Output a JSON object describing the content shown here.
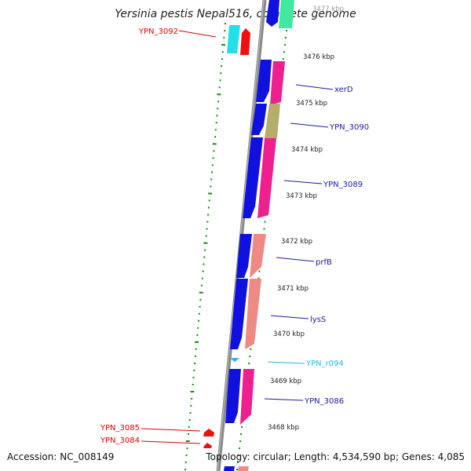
{
  "title": "Yersinia pestis Nepal516, complete genome",
  "footer": {
    "accession": "Accession: NC_008149",
    "summary": "Topology: circular; Length: 4,534,590 bp; Genes: 4,085"
  },
  "ticks": [
    "3477 kbp",
    "3476 kbp",
    "3475 kbp",
    "3474 kbp",
    "3473 kbp",
    "3472 kbp",
    "3471 kbp",
    "3470 kbp",
    "3469 kbp",
    "3468 kbp"
  ],
  "gene_labels": [
    {
      "name": "YPN_3092",
      "color": "#e00000"
    },
    {
      "name": "xerD",
      "color": "#1a1aa0"
    },
    {
      "name": "YPN_3090",
      "color": "#1a1aa0"
    },
    {
      "name": "YPN_3089",
      "color": "#1a1aa0"
    },
    {
      "name": "prfB",
      "color": "#1a1aa0"
    },
    {
      "name": "lysS",
      "color": "#1a1aa0"
    },
    {
      "name": "YPN_r094",
      "color": "#22b8e0"
    },
    {
      "name": "YPN_3086",
      "color": "#1a1aa0"
    },
    {
      "name": "YPN_3085",
      "color": "#e00000"
    },
    {
      "name": "YPN_3084",
      "color": "#e00000"
    }
  ],
  "colors": {
    "backbone": "#8a8a8a",
    "cds": "#1010e0",
    "cog_magenta": "#ee1f8f",
    "cog_salmon": "#ee8a84",
    "cog_olive": "#b5ad6a",
    "cog_cyan": "#22e0e8",
    "cog_red": "#ee1010",
    "cog_green": "#40e8a0",
    "gc_skew": "#118811",
    "trna": "#3aa8e8"
  }
}
